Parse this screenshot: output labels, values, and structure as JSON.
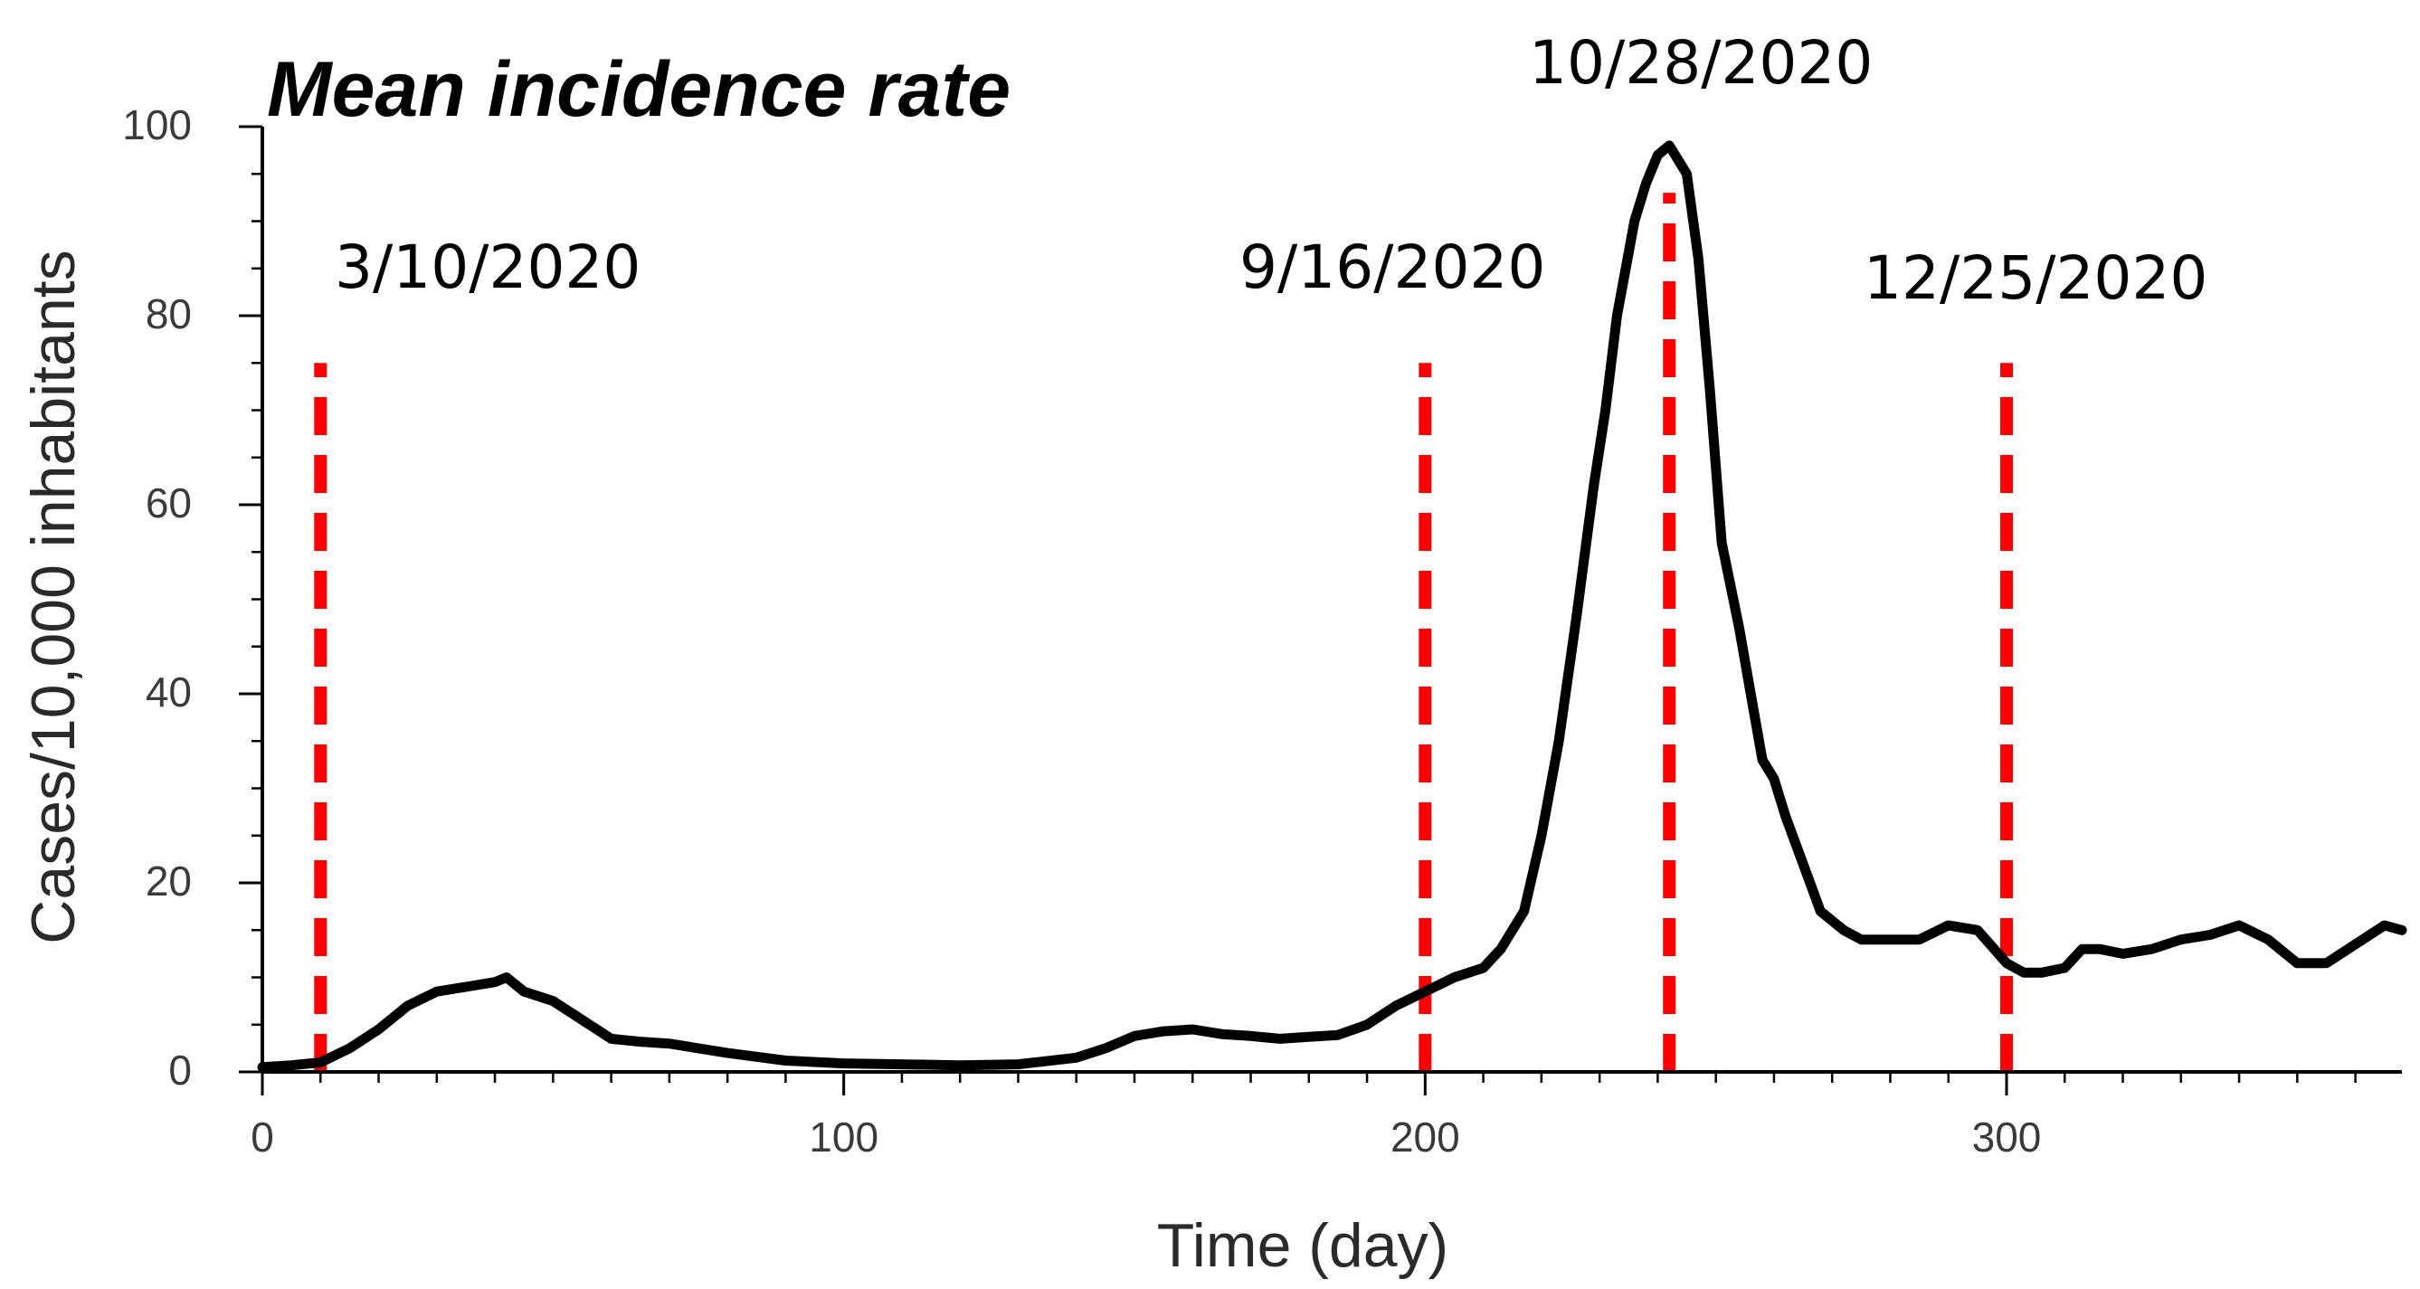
{
  "chart_data": {
    "type": "line",
    "title": "Mean incidence rate",
    "xlabel": "Time (day)",
    "ylabel": "Cases/10,000 inhabitants",
    "xlim": [
      0,
      368
    ],
    "ylim": [
      0,
      100
    ],
    "xticks": [
      0,
      100,
      200,
      300
    ],
    "yticks": [
      0,
      20,
      40,
      60,
      80,
      100
    ],
    "x_minor_step": 10,
    "y_minor_step": 5,
    "grid": false,
    "colors": {
      "line": "#000000",
      "marker_line": "#ff0000"
    },
    "series": [
      {
        "name": "Mean incidence rate",
        "x": [
          0,
          5,
          10,
          15,
          20,
          25,
          30,
          35,
          40,
          42,
          45,
          50,
          55,
          60,
          65,
          70,
          80,
          90,
          100,
          110,
          120,
          130,
          140,
          145,
          150,
          155,
          160,
          165,
          170,
          175,
          180,
          185,
          190,
          195,
          200,
          205,
          210,
          213,
          217,
          220,
          223,
          226,
          229,
          231,
          233,
          236,
          238,
          240,
          242,
          245,
          247,
          249,
          251,
          254,
          256,
          258,
          260,
          262,
          265,
          268,
          272,
          275,
          280,
          285,
          290,
          295,
          300,
          303,
          306,
          310,
          313,
          316,
          320,
          325,
          330,
          335,
          340,
          345,
          350,
          355,
          360,
          365,
          368
        ],
        "y": [
          0.5,
          0.7,
          1.0,
          2.5,
          4.5,
          7,
          8.5,
          9,
          9.5,
          10,
          8.5,
          7.5,
          5.5,
          3.5,
          3.2,
          3,
          2.0,
          1.2,
          0.9,
          0.8,
          0.7,
          0.8,
          1.5,
          2.5,
          3.8,
          4.3,
          4.5,
          4.0,
          3.8,
          3.5,
          3.7,
          3.9,
          5.0,
          7.0,
          8.5,
          10,
          11,
          13,
          17,
          25,
          35,
          48,
          62,
          70,
          80,
          90,
          94,
          97,
          98,
          95,
          86,
          72,
          56,
          47,
          40,
          33,
          31,
          27,
          22,
          17,
          15,
          14,
          14,
          14,
          15.5,
          15,
          11.5,
          10.5,
          10.5,
          11,
          13,
          13,
          12.5,
          13,
          14,
          14.5,
          15.5,
          14,
          11.5,
          11.5,
          13.5,
          15.5,
          15
        ]
      }
    ],
    "annotations": [
      {
        "label": "3/10/2020",
        "x": 10
      },
      {
        "label": "9/16/2020",
        "x": 200
      },
      {
        "label": "10/28/2020",
        "x": 242
      },
      {
        "label": "12/25/2020",
        "x": 300
      }
    ]
  }
}
